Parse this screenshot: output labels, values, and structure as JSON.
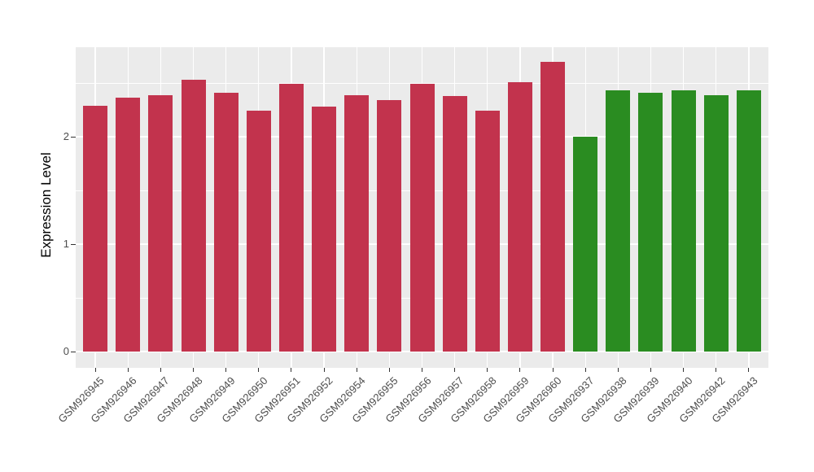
{
  "chart_data": {
    "type": "bar",
    "title": "",
    "xlabel": "",
    "ylabel": "Expression Level",
    "y_ticks": [
      0,
      1,
      2
    ],
    "y_minor_gridlines": [
      0.5,
      1.5,
      2.5
    ],
    "ylim": [
      0,
      2.84
    ],
    "grid": true,
    "legend": "none",
    "panel_background": "#EBEBEB",
    "gridline_color": "#FFFFFF",
    "categories": [
      "GSM926945",
      "GSM926946",
      "GSM926947",
      "GSM926948",
      "GSM926949",
      "GSM926950",
      "GSM926951",
      "GSM926952",
      "GSM926954",
      "GSM926955",
      "GSM926956",
      "GSM926957",
      "GSM926958",
      "GSM926959",
      "GSM926960",
      "GSM926937",
      "GSM926938",
      "GSM926939",
      "GSM926940",
      "GSM926942",
      "GSM926943"
    ],
    "series": [
      {
        "name": "red_group",
        "color": "#C2334D",
        "labels": [
          "GSM926945",
          "GSM926946",
          "GSM926947",
          "GSM926948",
          "GSM926949",
          "GSM926950",
          "GSM926951",
          "GSM926952",
          "GSM926954",
          "GSM926955",
          "GSM926956",
          "GSM926957",
          "GSM926958",
          "GSM926959",
          "GSM926960"
        ],
        "values": [
          2.29,
          2.36,
          2.39,
          2.53,
          2.41,
          2.24,
          2.49,
          2.28,
          2.39,
          2.34,
          2.49,
          2.38,
          2.24,
          2.51,
          2.7
        ]
      },
      {
        "name": "green_group",
        "color": "#2A8C21",
        "labels": [
          "GSM926937",
          "GSM926938",
          "GSM926939",
          "GSM926940",
          "GSM926942",
          "GSM926943"
        ],
        "values": [
          2.0,
          2.43,
          2.41,
          2.43,
          2.39,
          2.43
        ]
      }
    ]
  },
  "style": {
    "axis_text_color": "#4D4D4D",
    "axis_title_color": "#000000",
    "tick_color": "#333333",
    "background": "#FFFFFF"
  }
}
